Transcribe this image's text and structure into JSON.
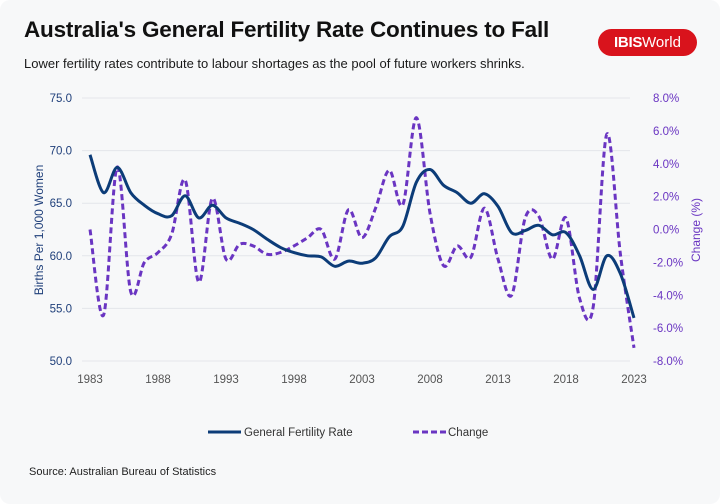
{
  "header": {
    "title": "Australia's General Fertility Rate Continues to Fall",
    "subtitle": "Lower fertility rates contribute to labour shortages as the pool of future workers shrinks.",
    "logo_bold": "IBIS",
    "logo_regular": "World",
    "logo_color": "#d9131c"
  },
  "source": "Source: Australian Bureau of Statistics",
  "chart_data": {
    "type": "line",
    "title": "Australia's General Fertility Rate Continues to Fall",
    "xlabel": "",
    "ylabel": "Births Per 1,000 Women",
    "y2label": "Change (%)",
    "ylim": [
      50,
      75
    ],
    "y2lim": [
      -8,
      8
    ],
    "grid": true,
    "legend_position": "bottom",
    "x_ticks": [
      "1983",
      "1988",
      "1993",
      "1998",
      "2003",
      "2008",
      "2013",
      "2018",
      "2023"
    ],
    "y_ticks": [
      "50.0",
      "55.0",
      "60.0",
      "65.0",
      "70.0",
      "75.0"
    ],
    "y2_ticks": [
      "-8.0%",
      "-6.0%",
      "-4.0%",
      "-2.0%",
      "0.0%",
      "2.0%",
      "4.0%",
      "6.0%",
      "8.0%"
    ],
    "x": [
      1983,
      1984,
      1985,
      1986,
      1987,
      1988,
      1989,
      1990,
      1991,
      1992,
      1993,
      1994,
      1995,
      1996,
      1997,
      1998,
      1999,
      2000,
      2001,
      2002,
      2003,
      2004,
      2005,
      2006,
      2007,
      2008,
      2009,
      2010,
      2011,
      2012,
      2013,
      2014,
      2015,
      2016,
      2017,
      2018,
      2019,
      2020,
      2021,
      2022,
      2023
    ],
    "series": [
      {
        "name": "General Fertility Rate",
        "axis": "left",
        "style": "solid",
        "color": "#0c3c78",
        "values": [
          69.6,
          66.0,
          68.4,
          66.0,
          64.8,
          64.0,
          63.8,
          65.7,
          63.6,
          64.8,
          63.6,
          63.1,
          62.5,
          61.6,
          60.8,
          60.3,
          60.0,
          59.9,
          59.0,
          59.5,
          59.3,
          59.8,
          61.8,
          62.8,
          67.0,
          68.2,
          66.7,
          66.0,
          65.0,
          65.9,
          64.7,
          62.2,
          62.4,
          62.9,
          62.0,
          62.2,
          60.0,
          56.8,
          60.0,
          58.3,
          54.1
        ]
      },
      {
        "name": "Change",
        "axis": "right",
        "style": "dashed",
        "color": "#6a35c2",
        "values": [
          0.0,
          -5.2,
          3.8,
          -3.8,
          -2.0,
          -1.4,
          -0.3,
          3.0,
          -3.2,
          1.9,
          -1.8,
          -0.9,
          -1.0,
          -1.5,
          -1.4,
          -1.0,
          -0.5,
          0.0,
          -1.8,
          1.2,
          -0.5,
          1.3,
          3.6,
          1.5,
          6.8,
          1.0,
          -2.2,
          -1.0,
          -1.7,
          1.3,
          -1.8,
          -4.0,
          0.7,
          0.8,
          -1.8,
          0.7,
          -4.2,
          -4.7,
          5.8,
          -1.5,
          -7.2
        ]
      }
    ]
  }
}
